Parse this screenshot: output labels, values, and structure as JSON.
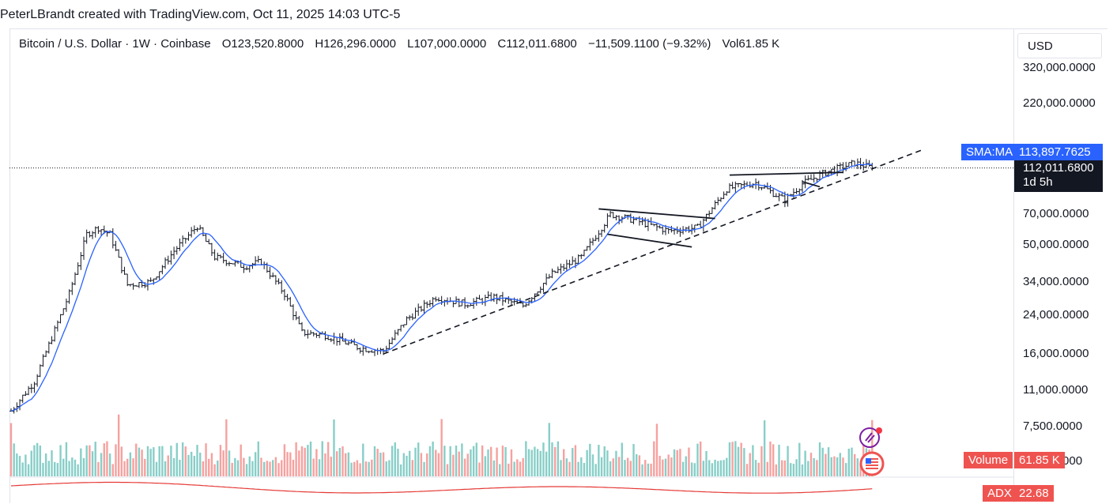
{
  "header": {
    "credit": "PeterLBrandt created with TradingView.com, Oct 11, 2025 14:03 UTC-5"
  },
  "legend": {
    "symbol": "Bitcoin / U.S. Dollar · 1W · Coinbase",
    "open": "O123,520.8000",
    "high": "H126,296.0000",
    "low": "L107,000.0000",
    "close": "C112,011.6800",
    "change": "−11,509.1100 (−9.32%)",
    "volume": "Vol61.85 K"
  },
  "price_axis": {
    "currency": "USD",
    "ticks": [
      "320,000.0000",
      "220,000.0000",
      "70,000.0000",
      "50,000.0000",
      "34,000.0000",
      "24,000.0000",
      "16,000.0000",
      "11,000.0000",
      "7,500.0000",
      "5,000.0000"
    ]
  },
  "tags": {
    "sma_label": "SMA:MA",
    "sma_value": "113,897.7625",
    "last_price": "112,011.6800",
    "countdown": "1d 5h",
    "volume_label": "Volume",
    "volume_value": "61.85 K",
    "adx_label": "ADX",
    "adx_value": "22.68"
  },
  "colors": {
    "up": "#26a69a",
    "down": "#ef5350",
    "sma": "#2962ff",
    "bars": "#131722",
    "adx": "#e53935"
  },
  "chart_data": {
    "type": "ohlc",
    "scale": "log",
    "ylim": [
      7000,
      380000
    ],
    "anchors": [
      {
        "t": 0,
        "p": 8800
      },
      {
        "t": 8,
        "p": 12000
      },
      {
        "t": 20,
        "p": 30000
      },
      {
        "t": 26,
        "p": 56000
      },
      {
        "t": 30,
        "p": 60000
      },
      {
        "t": 34,
        "p": 56000
      },
      {
        "t": 40,
        "p": 33000
      },
      {
        "t": 48,
        "p": 34000
      },
      {
        "t": 56,
        "p": 47000
      },
      {
        "t": 64,
        "p": 61000
      },
      {
        "t": 70,
        "p": 44000
      },
      {
        "t": 80,
        "p": 40000
      },
      {
        "t": 86,
        "p": 42000
      },
      {
        "t": 94,
        "p": 30000
      },
      {
        "t": 100,
        "p": 20000
      },
      {
        "t": 108,
        "p": 19500
      },
      {
        "t": 120,
        "p": 17000
      },
      {
        "t": 128,
        "p": 16500
      },
      {
        "t": 136,
        "p": 23000
      },
      {
        "t": 146,
        "p": 29000
      },
      {
        "t": 156,
        "p": 27000
      },
      {
        "t": 166,
        "p": 29000
      },
      {
        "t": 176,
        "p": 26500
      },
      {
        "t": 186,
        "p": 37000
      },
      {
        "t": 196,
        "p": 44000
      },
      {
        "t": 206,
        "p": 69000
      },
      {
        "t": 214,
        "p": 65000
      },
      {
        "t": 226,
        "p": 58000
      },
      {
        "t": 236,
        "p": 60000
      },
      {
        "t": 246,
        "p": 90000
      },
      {
        "t": 256,
        "p": 96000
      },
      {
        "t": 266,
        "p": 80000
      },
      {
        "t": 272,
        "p": 95000
      },
      {
        "t": 280,
        "p": 107000
      },
      {
        "t": 290,
        "p": 118000
      },
      {
        "t": 296,
        "p": 112000
      }
    ],
    "trendlines": [
      {
        "name": "rising-support",
        "style": "dashed",
        "from": {
          "t": 128,
          "p": 16000
        },
        "to": {
          "t": 313,
          "p": 135000
        }
      },
      {
        "name": "wedge-upper",
        "style": "solid",
        "from": {
          "t": 202,
          "p": 73000
        },
        "to": {
          "t": 242,
          "p": 66000
        }
      },
      {
        "name": "wedge-lower",
        "style": "solid",
        "from": {
          "t": 205,
          "p": 56000
        },
        "to": {
          "t": 234,
          "p": 49000
        }
      },
      {
        "name": "flag-upper",
        "style": "solid",
        "from": {
          "t": 247,
          "p": 104000
        },
        "to": {
          "t": 286,
          "p": 107000
        }
      },
      {
        "name": "flag-lower",
        "style": "solid",
        "from": {
          "t": 272,
          "p": 97000
        },
        "to": {
          "t": 278,
          "p": 92000
        }
      }
    ],
    "last_close": 112011.68
  }
}
